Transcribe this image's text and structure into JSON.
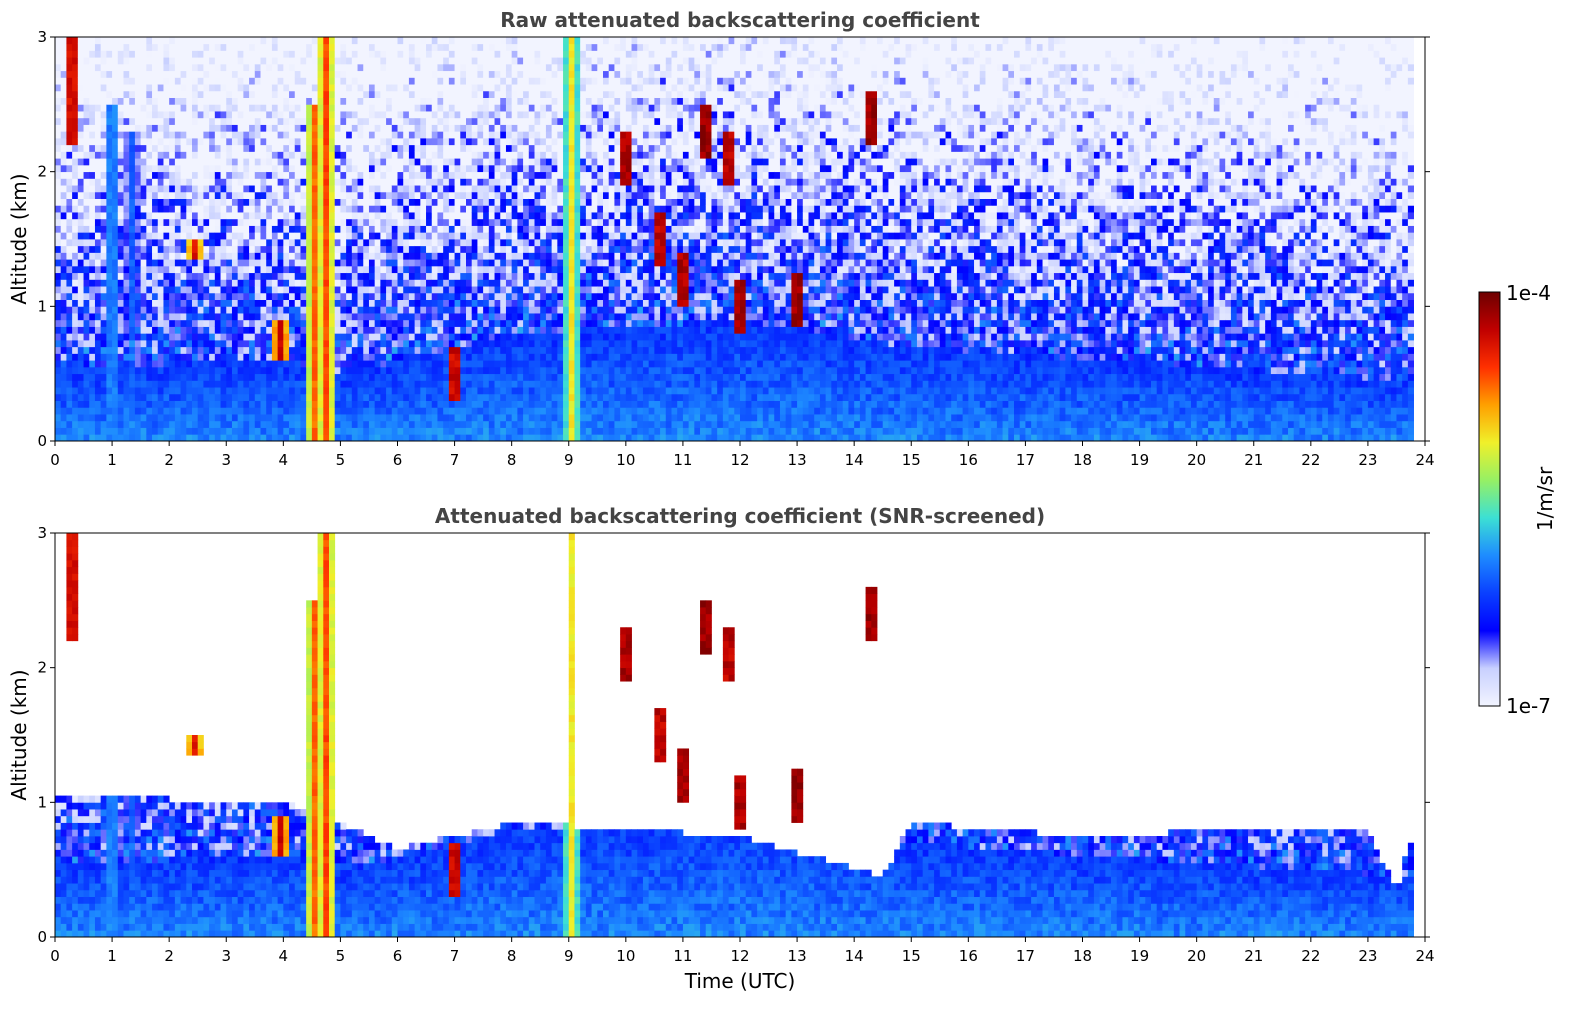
{
  "colors": {
    "colormap": [
      "#f2f4ff",
      "#c8d0ff",
      "#0000ff",
      "#0a40ff",
      "#1e8cff",
      "#3ce0d4",
      "#96f064",
      "#f0f02a",
      "#ffa000",
      "#ff3000",
      "#c00000",
      "#6e0000"
    ],
    "cloud_core": "#000000",
    "missing": "#ffffff"
  },
  "colorbar": {
    "min_label": "1e-7",
    "max_label": "1e-4",
    "unit_label": "1/m/sr",
    "min_value": 1e-07,
    "max_value": 0.0001,
    "scale": "log"
  },
  "chart_data": [
    {
      "type": "heatmap",
      "title": "Raw attenuated backscattering coefficient",
      "xlabel": "",
      "ylabel": "Altitude (km)",
      "xlim": [
        0,
        24
      ],
      "ylim": [
        0,
        3
      ],
      "x_ticks": [
        "0",
        "1",
        "2",
        "3",
        "4",
        "5",
        "6",
        "7",
        "8",
        "9",
        "10",
        "11",
        "12",
        "13",
        "14",
        "15",
        "16",
        "17",
        "18",
        "19",
        "20",
        "21",
        "22",
        "23",
        "24"
      ],
      "y_ticks": [
        "0",
        "1",
        "2",
        "3"
      ],
      "screened": false,
      "data_end_hour": 23.8,
      "features": {
        "boundary_layer_top_km": [
          [
            0,
            0.55
          ],
          [
            4,
            0.6
          ],
          [
            5,
            0.5
          ],
          [
            8,
            0.8
          ],
          [
            12,
            0.9
          ],
          [
            15,
            0.7
          ],
          [
            20,
            0.55
          ],
          [
            23.8,
            0.45
          ]
        ],
        "vertical_plumes": [
          {
            "hour": 0.3,
            "bottom_km": 2.2,
            "top_km": 3.0,
            "value": 8e-05
          },
          {
            "hour": 1.0,
            "bottom_km": 0.0,
            "top_km": 2.5,
            "value": 2e-06
          },
          {
            "hour": 1.35,
            "bottom_km": 0.0,
            "top_km": 2.3,
            "value": 1e-06
          },
          {
            "hour": 2.45,
            "bottom_km": 1.35,
            "top_km": 1.5,
            "value": 5e-05
          },
          {
            "hour": 3.95,
            "bottom_km": 0.6,
            "top_km": 0.9,
            "value": 6e-05
          },
          {
            "hour": 4.55,
            "bottom_km": 0.0,
            "top_km": 2.5,
            "value": 2.5e-05
          },
          {
            "hour": 4.75,
            "bottom_km": 0.0,
            "top_km": 3.0,
            "value": 3e-05
          },
          {
            "hour": 9.05,
            "bottom_km": 0.0,
            "top_km": 3.0,
            "value": 1e-05
          }
        ],
        "cloud_patches": [
          {
            "hour": 7.0,
            "altitude_km": 0.5,
            "value": 6e-05
          },
          {
            "hour": 10.0,
            "altitude_km": 2.1,
            "value": 8e-05
          },
          {
            "hour": 10.6,
            "altitude_km": 1.5,
            "value": 7e-05
          },
          {
            "hour": 11.0,
            "altitude_km": 1.2,
            "value": 8e-05
          },
          {
            "hour": 11.4,
            "altitude_km": 2.3,
            "value": 9e-05
          },
          {
            "hour": 11.8,
            "altitude_km": 2.1,
            "value": 7e-05
          },
          {
            "hour": 12.0,
            "altitude_km": 1.0,
            "value": 8e-05
          },
          {
            "hour": 13.0,
            "altitude_km": 1.05,
            "value": 9e-05
          },
          {
            "hour": 14.3,
            "altitude_km": 2.4,
            "value": 9e-05
          }
        ]
      }
    },
    {
      "type": "heatmap",
      "title": "Attenuated backscattering coefficient (SNR-screened)",
      "xlabel": "Time (UTC)",
      "ylabel": "Altitude (km)",
      "xlim": [
        0,
        24
      ],
      "ylim": [
        0,
        3
      ],
      "x_ticks": [
        "0",
        "1",
        "2",
        "3",
        "4",
        "5",
        "6",
        "7",
        "8",
        "9",
        "10",
        "11",
        "12",
        "13",
        "14",
        "15",
        "16",
        "17",
        "18",
        "19",
        "20",
        "21",
        "22",
        "23",
        "24"
      ],
      "y_ticks": [
        "0",
        "1",
        "2",
        "3"
      ],
      "screened": true,
      "data_end_hour": 23.8,
      "features": {
        "screened_top_km": [
          [
            0,
            1.05
          ],
          [
            4,
            1.0
          ],
          [
            5,
            0.85
          ],
          [
            6,
            0.65
          ],
          [
            8,
            0.85
          ],
          [
            10,
            0.8
          ],
          [
            12,
            0.75
          ],
          [
            14.5,
            0.45
          ],
          [
            15,
            0.85
          ],
          [
            18,
            0.75
          ],
          [
            21,
            0.8
          ],
          [
            23,
            0.8
          ],
          [
            23.5,
            0.35
          ],
          [
            23.8,
            0.8
          ]
        ]
      }
    }
  ]
}
